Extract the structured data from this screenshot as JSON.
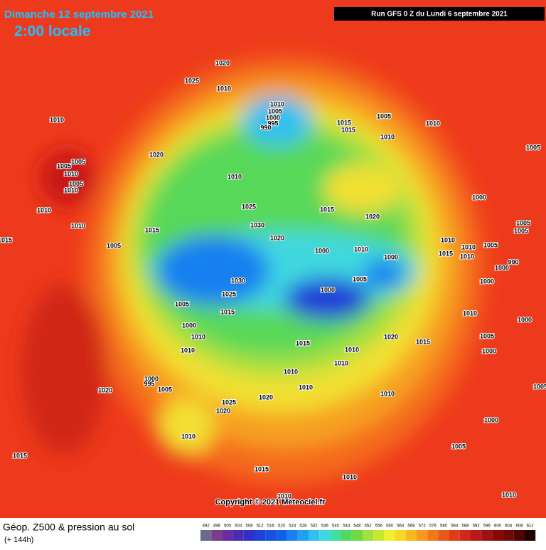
{
  "header": {
    "date": "Dimanche 12 septembre 2021",
    "local_time": "2:00 locale",
    "run": "Run GFS 0 Z du Lundi 6 septembre 2021"
  },
  "copyright": "Copyright © 2021 Meteociel.fr",
  "footer": {
    "title": "Géop. Z500 & pression au sol",
    "lead": "(+ 144h)"
  },
  "scale": {
    "labels": [
      "492",
      "496",
      "500",
      "504",
      "508",
      "512",
      "516",
      "520",
      "524",
      "528",
      "532",
      "536",
      "540",
      "544",
      "548",
      "552",
      "556",
      "560",
      "564",
      "568",
      "572",
      "576",
      "580",
      "584",
      "588",
      "592",
      "596",
      "600",
      "604",
      "608",
      "612"
    ],
    "colors": [
      "#6a6a8a",
      "#7a3c8c",
      "#6a2ca0",
      "#4a2cb4",
      "#3030c8",
      "#2040d8",
      "#1a50e0",
      "#1060e8",
      "#1880f0",
      "#20a0f0",
      "#30c0f0",
      "#40d8e0",
      "#40e0a0",
      "#50d860",
      "#70d840",
      "#a0e040",
      "#c8e830",
      "#f0f030",
      "#f8d820",
      "#f8b820",
      "#f89820",
      "#f07818",
      "#e85818",
      "#e03c18",
      "#d02818",
      "#b81818",
      "#a01010",
      "#880808",
      "#700808",
      "#500404",
      "#200000"
    ]
  },
  "pressure_labels": [
    "1020",
    "1025",
    "1010",
    "1010",
    "1010",
    "1005",
    "1000",
    "995",
    "990",
    "1015",
    "1015",
    "1005",
    "1010",
    "1010",
    "1005",
    "1020",
    "1005",
    "1005",
    "1010",
    "1005",
    "1010",
    "1010",
    "1010",
    "1025",
    "1015",
    "1020",
    "1000",
    "1005",
    "1010",
    "1015",
    "1030",
    "1020",
    "1010",
    "1005",
    "1015",
    "1005",
    "1000",
    "1010",
    "1000",
    "1015",
    "1010",
    "1005",
    "1010",
    "1000",
    "990",
    "1030",
    "1005",
    "1000",
    "1000",
    "1005",
    "1025",
    "1015",
    "1010",
    "1000",
    "1000",
    "1010",
    "1015",
    "1020",
    "1015",
    "1005",
    "1010",
    "1010",
    "1000",
    "1010",
    "1010",
    "1010",
    "1000",
    "995",
    "1005",
    "1020",
    "1010",
    "1020",
    "1025",
    "1020",
    "1000",
    "1010",
    "1015",
    "1005",
    "1015",
    "1010",
    "1010",
    "1010",
    "1005"
  ]
}
